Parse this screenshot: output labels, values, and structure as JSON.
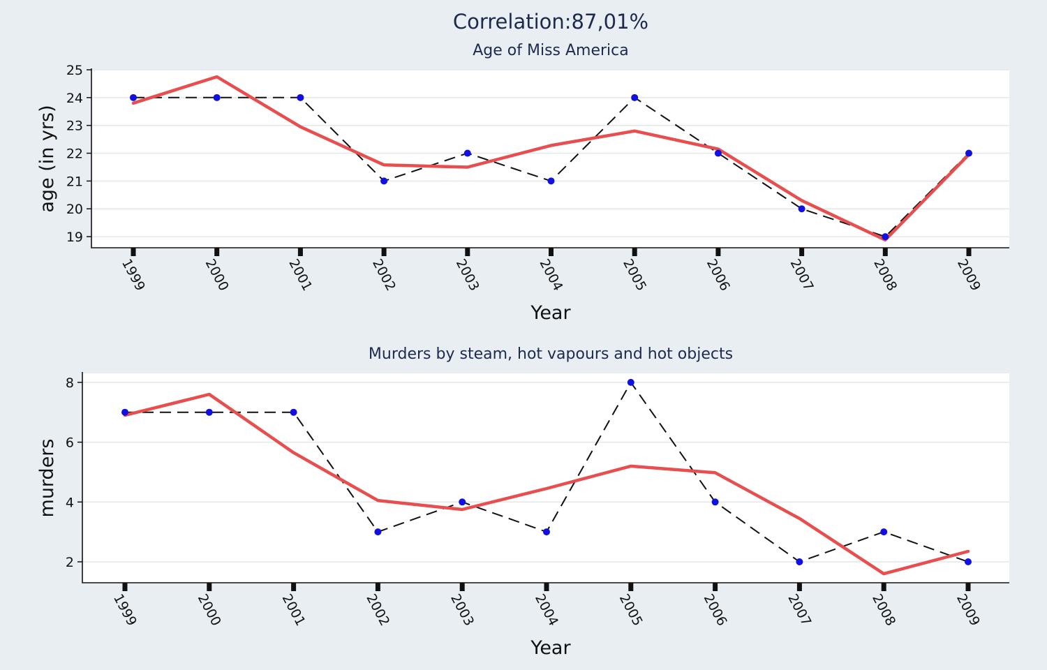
{
  "figure_title": "Correlation:87,01%",
  "chart_data": [
    {
      "type": "line",
      "title": "Age of Miss America",
      "xlabel": "Year",
      "ylabel": "age (in yrs)",
      "x": [
        "1999",
        "2000",
        "2001",
        "2002",
        "2003",
        "2004",
        "2005",
        "2006",
        "2007",
        "2008",
        "2009"
      ],
      "yticks": [
        19,
        20,
        21,
        22,
        23,
        24,
        25
      ],
      "ylim": [
        18.6,
        25
      ],
      "grid": true,
      "series": [
        {
          "style": "dashed-with-markers",
          "color": "#111111",
          "marker_color": "#1010e0",
          "values": [
            24,
            24,
            24,
            21,
            22,
            21,
            24,
            22,
            20,
            19,
            22
          ]
        },
        {
          "style": "solid-smooth",
          "color": "#e84e4e",
          "values": [
            23.8,
            24.75,
            22.95,
            21.58,
            21.5,
            22.28,
            22.8,
            22.15,
            20.3,
            18.88,
            21.95
          ]
        }
      ]
    },
    {
      "type": "line",
      "title": "Murders by steam, hot vapours and hot objects",
      "xlabel": "Year",
      "ylabel": "murders",
      "x": [
        "1999",
        "2000",
        "2001",
        "2002",
        "2003",
        "2004",
        "2005",
        "2006",
        "2007",
        "2008",
        "2009"
      ],
      "yticks": [
        2,
        4,
        6,
        8
      ],
      "ylim": [
        1.3,
        8.3
      ],
      "grid": true,
      "series": [
        {
          "style": "dashed-with-markers",
          "color": "#111111",
          "marker_color": "#1010e0",
          "values": [
            7,
            7,
            7,
            3,
            4,
            3,
            8,
            4,
            2,
            3,
            2
          ]
        },
        {
          "style": "solid-smooth",
          "color": "#e84e4e",
          "values": [
            6.9,
            7.6,
            5.65,
            4.05,
            3.75,
            4.45,
            5.2,
            4.98,
            3.45,
            1.6,
            2.35
          ]
        }
      ]
    }
  ]
}
